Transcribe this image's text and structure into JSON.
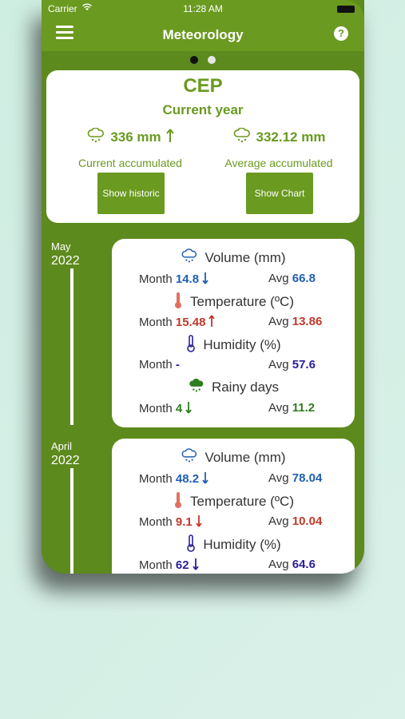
{
  "status": {
    "carrier": "Carrier",
    "time": "11:28 AM"
  },
  "header": {
    "title": "Meteorology",
    "help": "?"
  },
  "summary": {
    "station": "CEP",
    "period": "Current year",
    "current_value": "336 mm",
    "current_label": "Current accumulated",
    "average_value": "332.12 mm",
    "average_label": "Average accumulated",
    "btn_historic": "Show historic",
    "btn_chart": "Show Chart"
  },
  "months": [
    {
      "month": "May",
      "year": "2022",
      "volume_label": "Volume (mm)",
      "month_label": "Month",
      "avg_label": "Avg",
      "volume_month": "14.8",
      "volume_avg": "66.8",
      "temp_label": "Temperature (ºC)",
      "temp_month": "15.48",
      "temp_avg": "13.86",
      "hum_label": "Humidity (%)",
      "hum_month": "-",
      "hum_avg": "57.6",
      "rain_label": "Rainy days",
      "rain_month": "4",
      "rain_avg": "11.2"
    },
    {
      "month": "April",
      "year": "2022",
      "volume_label": "Volume (mm)",
      "month_label": "Month",
      "avg_label": "Avg",
      "volume_month": "48.2",
      "volume_avg": "78.04",
      "temp_label": "Temperature (ºC)",
      "temp_month": "9.1",
      "temp_avg": "10.04",
      "hum_label": "Humidity (%)",
      "hum_month": "62",
      "hum_avg": "64.6"
    }
  ],
  "colors": {
    "green": "#6a9a20",
    "dark_green": "#5d8a1d",
    "blue": "#1e5fb4",
    "red": "#c0392b",
    "navy": "#2a1f9b",
    "rain_green": "#2e7d1e"
  },
  "icons": {
    "menu": "hamburger-icon",
    "help": "help-icon",
    "rain": "rain-cloud-icon",
    "thermometer": "thermometer-icon",
    "humidity": "humidity-thermometer-icon",
    "rainy_days": "heavy-rain-cloud-icon",
    "up": "arrow-up-icon",
    "down": "arrow-down-icon"
  }
}
